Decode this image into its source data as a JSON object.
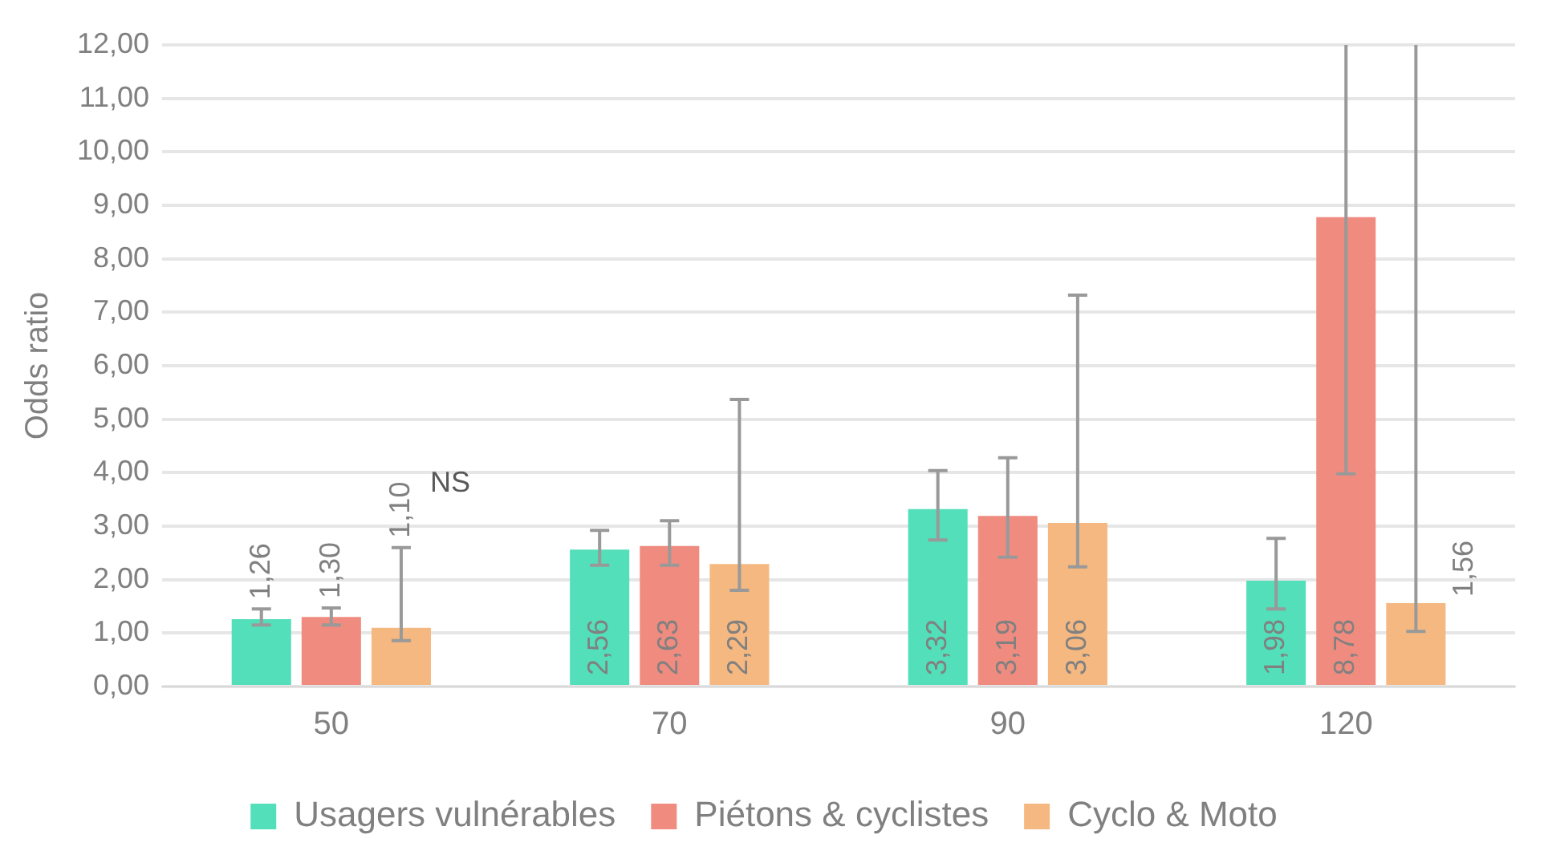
{
  "chart_data": {
    "type": "bar",
    "ylabel": "Odds ratio",
    "categories": [
      "50",
      "70",
      "90",
      "120"
    ],
    "series": [
      {
        "name": "Usagers vulnérables",
        "color": "#52dfb9",
        "values": [
          1.26,
          2.56,
          3.32,
          1.98
        ],
        "value_labels": [
          "1,26",
          "2,56",
          "3,32",
          "1,98"
        ],
        "errors": [
          [
            1.15,
            1.45
          ],
          [
            2.27,
            2.92
          ],
          [
            2.74,
            4.04
          ],
          [
            1.45,
            2.77
          ]
        ]
      },
      {
        "name": "Piétons & cyclistes",
        "color": "#f08b7f",
        "values": [
          1.3,
          2.63,
          3.19,
          8.78
        ],
        "value_labels": [
          "1,30",
          "2,63",
          "3,19",
          "8,78"
        ],
        "errors": [
          [
            1.15,
            1.47
          ],
          [
            2.27,
            3.1
          ],
          [
            2.42,
            4.28
          ],
          [
            3.98,
            12
          ]
        ]
      },
      {
        "name": "Cyclo & Moto",
        "color": "#f5b880",
        "values": [
          1.1,
          2.29,
          3.06,
          1.56
        ],
        "value_labels": [
          "1,10",
          "2,29",
          "3,06",
          "1,56"
        ],
        "errors": [
          [
            0.86,
            2.6
          ],
          [
            1.8,
            5.37
          ],
          [
            2.24,
            7.32
          ],
          [
            1.03,
            12
          ]
        ]
      }
    ],
    "ylim": [
      0,
      12
    ],
    "yticks": [
      {
        "value": 0,
        "label": "0,00"
      },
      {
        "value": 1,
        "label": "1,00"
      },
      {
        "value": 2,
        "label": "2,00"
      },
      {
        "value": 3,
        "label": "3,00"
      },
      {
        "value": 4,
        "label": "4,00"
      },
      {
        "value": 5,
        "label": "5,00"
      },
      {
        "value": 6,
        "label": "6,00"
      },
      {
        "value": 7,
        "label": "7,00"
      },
      {
        "value": 8,
        "label": "8,00"
      },
      {
        "value": 9,
        "label": "9,00"
      },
      {
        "value": 10,
        "label": "10,00"
      },
      {
        "value": 11,
        "label": "11,00"
      },
      {
        "value": 12,
        "label": "12,00"
      }
    ],
    "annotations": [
      "NS"
    ],
    "grid": "y",
    "legend": "bottom"
  }
}
